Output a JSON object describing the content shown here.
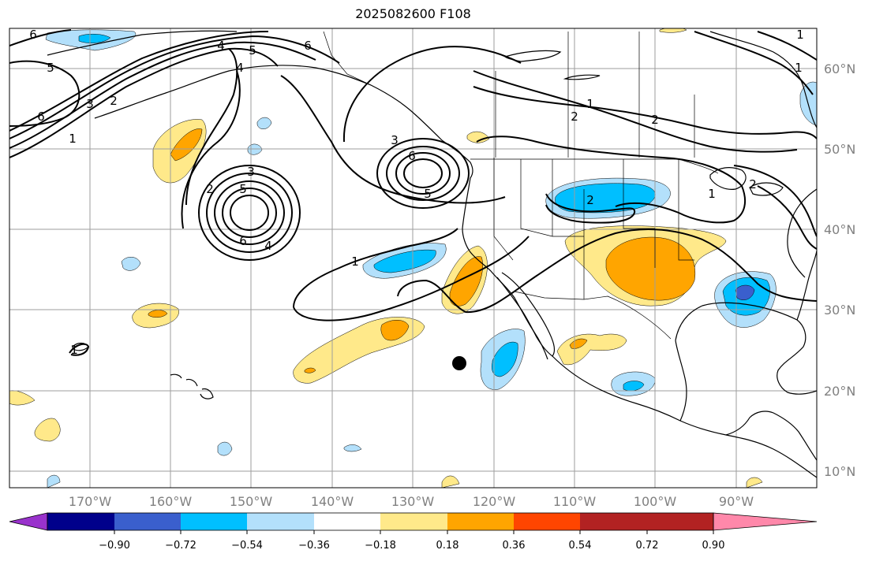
{
  "title": "2025082600 F108",
  "colors": {
    "grid": "#9e9e9e",
    "coast": "#000000",
    "neg_light": "#b3e0fb",
    "neg_mid": "#00bfff",
    "neg_strong": "#3a5fcd",
    "pos_light": "#ffe98a",
    "pos_mid": "#ffa500",
    "marker": "#000000"
  },
  "latitude_labels": [
    "60°N",
    "50°N",
    "40°N",
    "30°N",
    "20°N",
    "10°N"
  ],
  "longitude_labels": [
    "170°W",
    "160°W",
    "150°W",
    "140°W",
    "130°W",
    "120°W",
    "110°W",
    "100°W",
    "90°W"
  ],
  "contour_labels": [
    "6",
    "5",
    "4",
    "6",
    "5",
    "6",
    "3",
    "2",
    "1",
    "6",
    "5",
    "4",
    "3",
    "2",
    "6",
    "5",
    "3",
    "4",
    "1",
    "6",
    "3",
    "5",
    "1",
    "1",
    "2",
    "1",
    "2",
    "2",
    "1",
    "2",
    "1"
  ],
  "colorbar": {
    "colors": [
      "#9932cc",
      "#00008b",
      "#3a5fcd",
      "#00bfff",
      "#b3e0fb",
      "#ffffff",
      "#ffe98a",
      "#ffa500",
      "#ff4500",
      "#b22222",
      "#ff88aa"
    ],
    "tick_labels": [
      "−0.90",
      "−0.72",
      "−0.54",
      "−0.36",
      "−0.18",
      "0.18",
      "0.36",
      "0.54",
      "0.72",
      "0.90"
    ]
  }
}
